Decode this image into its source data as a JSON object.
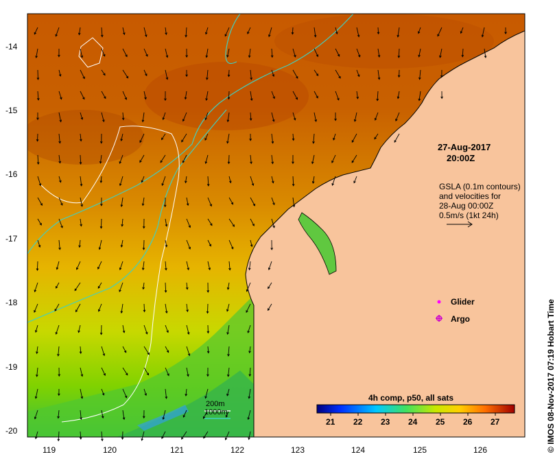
{
  "map": {
    "date": "27-Aug-2017",
    "time": "20:00Z",
    "gsla_lines": [
      "GSLA (0.1m contours)",
      "and velocities for",
      "28-Aug 00:00Z",
      "0.5m/s (1kt 24h)"
    ],
    "legend": {
      "glider": "Glider",
      "argo": "Argo",
      "glider_color": "#ff00ff",
      "argo_color": "#cc00cc"
    },
    "bathymetry": [
      {
        "label": "200m",
        "color": "#ffffff"
      },
      {
        "label": "1000m",
        "color": "#40d0c0"
      }
    ],
    "colorbar": {
      "title": "4h comp, p50, all sats",
      "ticks": [
        "21",
        "22",
        "23",
        "24",
        "25",
        "26",
        "27"
      ],
      "range": [
        20.5,
        27.7
      ]
    },
    "lat_labels": [
      "-14",
      "-15",
      "-16",
      "-17",
      "-18",
      "-19",
      "-20"
    ],
    "lon_labels": [
      "119",
      "120",
      "121",
      "122",
      "123",
      "124",
      "125",
      "126"
    ],
    "credit": "© IMOS 08-Nov-2017 07:19 Hobart Time",
    "colors": {
      "land": "#f8c49c",
      "coast": "#000000"
    }
  }
}
